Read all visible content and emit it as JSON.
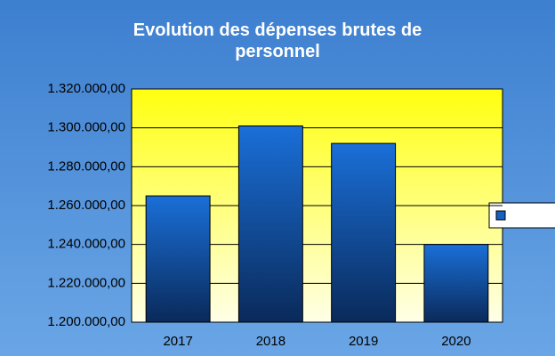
{
  "chart_data": {
    "type": "bar",
    "title": "Evolution des dépenses brutes de personnel",
    "categories": [
      "2017",
      "2018",
      "2019",
      "2020"
    ],
    "series": [
      {
        "color": "#1560c0",
        "values": [
          1265000,
          1301000,
          1292000,
          1240000
        ]
      }
    ],
    "ylim": [
      1200000,
      1320000
    ],
    "yticks": [
      {
        "value": 1200000,
        "label": "1.200.000,00"
      },
      {
        "value": 1220000,
        "label": "1.220.000,00"
      },
      {
        "value": 1240000,
        "label": "1.240.000,00"
      },
      {
        "value": 1260000,
        "label": "1.260.000,00"
      },
      {
        "value": 1280000,
        "label": "1.280.000,00"
      },
      {
        "value": 1300000,
        "label": "1.300.000,00"
      },
      {
        "value": 1320000,
        "label": "1.320.000,00"
      }
    ],
    "grid": true,
    "legend": "right"
  }
}
